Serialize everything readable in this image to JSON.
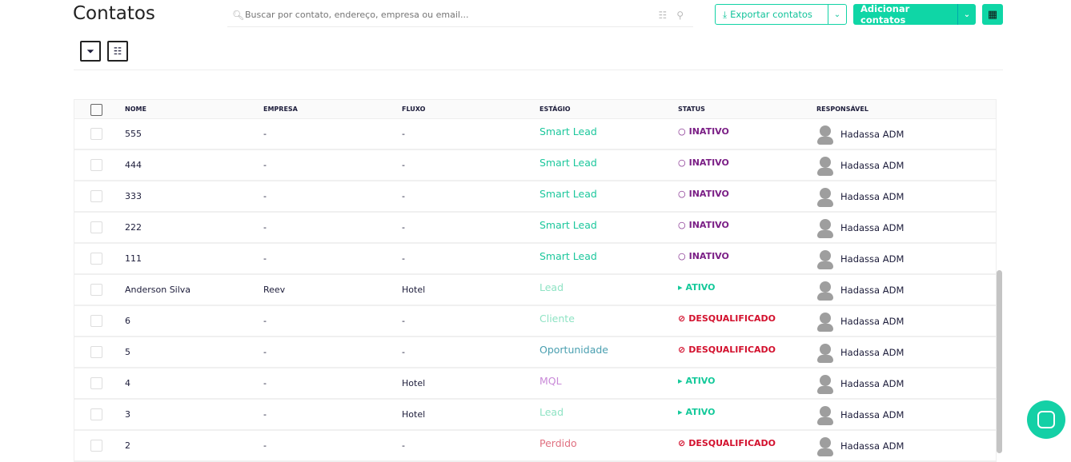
{
  "header": {
    "title": "Contatos",
    "search_placeholder": "Buscar por contato, endereço, empresa ou email...",
    "export_label": "Exportar contatos",
    "add_label": "Adicionar contatos"
  },
  "colors": {
    "accent": "#0fd6a6",
    "inativo": "#7b1f86",
    "ativo": "#14c99a",
    "desqualificado": "#d3112e"
  },
  "table": {
    "columns": [
      "NOME",
      "EMPRESA",
      "FLUXO",
      "ESTÁGIO",
      "STATUS",
      "RESPONSÁVEL"
    ],
    "rows": [
      {
        "nome": "555",
        "empresa": "-",
        "fluxo": "-",
        "estagio": "Smart Lead",
        "stage_color": "#1cc79c",
        "status": "INATIVO",
        "status_type": "inativo",
        "responsavel": "Hadassa ADM"
      },
      {
        "nome": "444",
        "empresa": "-",
        "fluxo": "-",
        "estagio": "Smart Lead",
        "stage_color": "#1cc79c",
        "status": "INATIVO",
        "status_type": "inativo",
        "responsavel": "Hadassa ADM"
      },
      {
        "nome": "333",
        "empresa": "-",
        "fluxo": "-",
        "estagio": "Smart Lead",
        "stage_color": "#1cc79c",
        "status": "INATIVO",
        "status_type": "inativo",
        "responsavel": "Hadassa ADM"
      },
      {
        "nome": "222",
        "empresa": "-",
        "fluxo": "-",
        "estagio": "Smart Lead",
        "stage_color": "#1cc79c",
        "status": "INATIVO",
        "status_type": "inativo",
        "responsavel": "Hadassa ADM"
      },
      {
        "nome": "111",
        "empresa": "-",
        "fluxo": "-",
        "estagio": "Smart Lead",
        "stage_color": "#1cc79c",
        "status": "INATIVO",
        "status_type": "inativo",
        "responsavel": "Hadassa ADM"
      },
      {
        "nome": "Anderson Silva",
        "empresa": "Reev",
        "fluxo": "Hotel",
        "estagio": "Lead",
        "stage_color": "#8fe3c4",
        "status": "ATIVO",
        "status_type": "ativo",
        "responsavel": "Hadassa ADM"
      },
      {
        "nome": "6",
        "empresa": "-",
        "fluxo": "-",
        "estagio": "Cliente",
        "stage_color": "#8fe3c4",
        "status": "DESQUALIFICADO",
        "status_type": "desqualificado",
        "responsavel": "Hadassa ADM"
      },
      {
        "nome": "5",
        "empresa": "-",
        "fluxo": "-",
        "estagio": "Oportunidade",
        "stage_color": "#4a9fb0",
        "status": "DESQUALIFICADO",
        "status_type": "desqualificado",
        "responsavel": "Hadassa ADM"
      },
      {
        "nome": "4",
        "empresa": "-",
        "fluxo": "Hotel",
        "estagio": "MQL",
        "stage_color": "#c98ad8",
        "status": "ATIVO",
        "status_type": "ativo",
        "responsavel": "Hadassa ADM"
      },
      {
        "nome": "3",
        "empresa": "-",
        "fluxo": "Hotel",
        "estagio": "Lead",
        "stage_color": "#8fe3c4",
        "status": "ATIVO",
        "status_type": "ativo",
        "responsavel": "Hadassa ADM"
      },
      {
        "nome": "2",
        "empresa": "-",
        "fluxo": "-",
        "estagio": "Perdido",
        "stage_color": "#e07080",
        "status": "DESQUALIFICADO",
        "status_type": "desqualificado",
        "responsavel": "Hadassa ADM"
      }
    ]
  }
}
